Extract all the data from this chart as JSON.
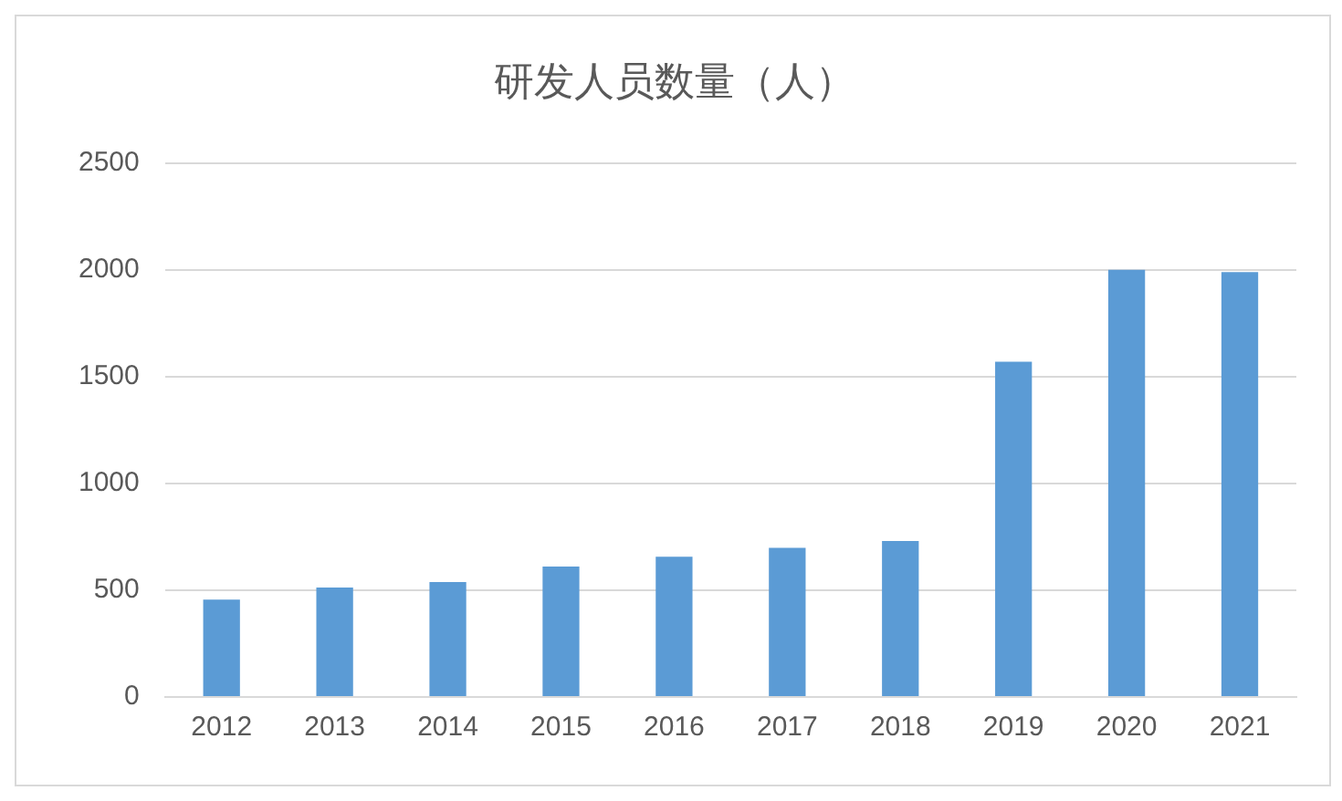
{
  "chart_data": {
    "type": "bar",
    "title": "研发人员数量（人）",
    "categories": [
      "2012",
      "2013",
      "2014",
      "2015",
      "2016",
      "2017",
      "2018",
      "2019",
      "2020",
      "2021"
    ],
    "values": [
      456,
      513,
      538,
      611,
      657,
      698,
      730,
      1570,
      2000,
      1990
    ],
    "color": "#5b9bd5",
    "ylim": [
      0,
      2500
    ],
    "yticks": [
      0,
      500,
      1000,
      1500,
      2000,
      2500
    ],
    "grid": "y"
  }
}
